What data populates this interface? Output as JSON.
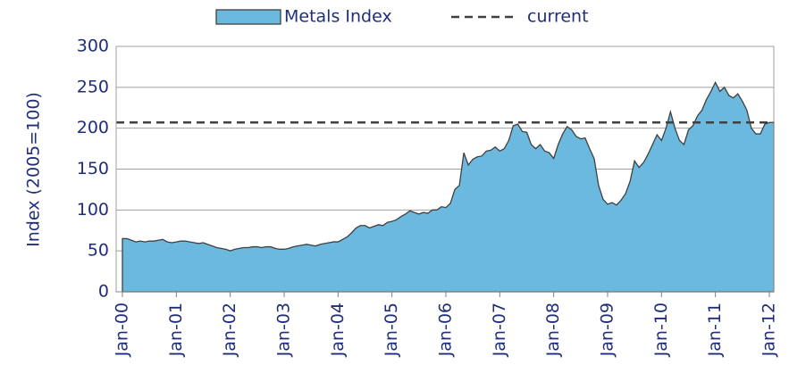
{
  "chart_data": {
    "type": "area",
    "ylabel": "Index (2005=100)",
    "categories": [
      "Jan-00",
      null,
      null,
      null,
      null,
      null,
      null,
      null,
      null,
      null,
      null,
      null,
      "Jan-01",
      null,
      null,
      null,
      null,
      null,
      null,
      null,
      null,
      null,
      null,
      null,
      "Jan-02",
      null,
      null,
      null,
      null,
      null,
      null,
      null,
      null,
      null,
      null,
      null,
      "Jan-03",
      null,
      null,
      null,
      null,
      null,
      null,
      null,
      null,
      null,
      null,
      null,
      "Jan-04",
      null,
      null,
      null,
      null,
      null,
      null,
      null,
      null,
      null,
      null,
      null,
      "Jan-05",
      null,
      null,
      null,
      null,
      null,
      null,
      null,
      null,
      null,
      null,
      null,
      "Jan-06",
      null,
      null,
      null,
      null,
      null,
      null,
      null,
      null,
      null,
      null,
      null,
      "Jan-07",
      null,
      null,
      null,
      null,
      null,
      null,
      null,
      null,
      null,
      null,
      null,
      "Jan-08",
      null,
      null,
      null,
      null,
      null,
      null,
      null,
      null,
      null,
      null,
      null,
      "Jan-09",
      null,
      null,
      null,
      null,
      null,
      null,
      null,
      null,
      null,
      null,
      null,
      "Jan-10",
      null,
      null,
      null,
      null,
      null,
      null,
      null,
      null,
      null,
      null,
      null,
      "Jan-11",
      null,
      null,
      null,
      null,
      null,
      null,
      null,
      null,
      null,
      null,
      null,
      "Jan-12",
      null
    ],
    "series": [
      {
        "name": "Metals Index",
        "color": "#6cb9e0",
        "edge": "#404040",
        "values": [
          65,
          65,
          63,
          61,
          62,
          61,
          62,
          62,
          63,
          64,
          61,
          60,
          61,
          62,
          62,
          61,
          60,
          59,
          60,
          58,
          56,
          54,
          53,
          52,
          50,
          52,
          53,
          54,
          54,
          55,
          55,
          54,
          55,
          55,
          53,
          52,
          52,
          53,
          55,
          56,
          57,
          58,
          57,
          56,
          58,
          59,
          60,
          61,
          61,
          64,
          67,
          72,
          78,
          81,
          81,
          78,
          80,
          82,
          81,
          85,
          86,
          88,
          92,
          95,
          99,
          97,
          95,
          97,
          96,
          100,
          100,
          104,
          103,
          108,
          125,
          130,
          170,
          155,
          162,
          165,
          166,
          172,
          173,
          177,
          172,
          175,
          185,
          203,
          205,
          196,
          195,
          180,
          175,
          180,
          172,
          170,
          163,
          180,
          193,
          202,
          198,
          190,
          187,
          188,
          175,
          163,
          130,
          113,
          107,
          109,
          106,
          112,
          120,
          135,
          160,
          152,
          158,
          168,
          180,
          192,
          185,
          200,
          220,
          200,
          185,
          180,
          198,
          203,
          215,
          222,
          235,
          245,
          256,
          245,
          250,
          240,
          237,
          242,
          233,
          222,
          200,
          193,
          193,
          205,
          207,
          207
        ]
      }
    ],
    "reference_line": {
      "name": "current",
      "value": 207,
      "color": "#404040"
    },
    "ylim": [
      0,
      300
    ],
    "yticks": [
      0,
      50,
      100,
      150,
      200,
      250,
      300
    ],
    "grid": true,
    "legend": "top"
  }
}
